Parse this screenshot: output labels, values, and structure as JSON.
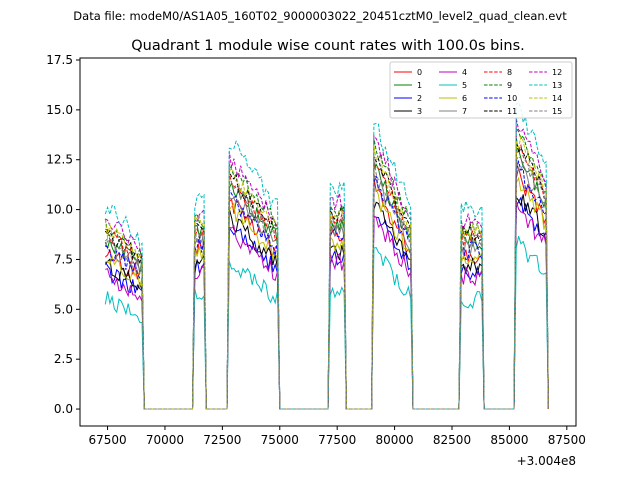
{
  "chart_data": {
    "type": "line",
    "suptitle": "Data file: modeM0/AS1A05_160T02_9000003022_20451cztM0_level2_quad_clean.evt",
    "title": "Quadrant 1 module wise count rates with 100.0s bins.",
    "xlabel": "",
    "ylabel": "",
    "x_offset_label": "+3.004e8",
    "xlim": [
      66300,
      87900
    ],
    "ylim": [
      -0.85,
      17.6
    ],
    "x_ticks": [
      67500,
      70000,
      72500,
      75000,
      77500,
      80000,
      82500,
      85000,
      87500
    ],
    "x_tick_labels": [
      "67500",
      "70000",
      "72500",
      "75000",
      "77500",
      "80000",
      "82500",
      "85000",
      "87500"
    ],
    "y_ticks": [
      0.0,
      2.5,
      5.0,
      7.5,
      10.0,
      12.5,
      15.0,
      17.5
    ],
    "y_tick_labels": [
      "0.0",
      "2.5",
      "5.0",
      "7.5",
      "10.0",
      "12.5",
      "15.0",
      "17.5"
    ],
    "legend_position": "top-right",
    "legend_columns": 4,
    "segments": [
      {
        "start": 67400,
        "end": 69000,
        "decay": 0.17
      },
      {
        "start": 71300,
        "end": 71700,
        "decay": 0.0
      },
      {
        "start": 72800,
        "end": 74900,
        "decay": 0.25
      },
      {
        "start": 77200,
        "end": 77800,
        "decay": 0.0
      },
      {
        "start": 79100,
        "end": 80700,
        "decay": 0.3
      },
      {
        "start": 82900,
        "end": 83800,
        "decay": 0.0
      },
      {
        "start": 85300,
        "end": 86600,
        "decay": 0.2
      }
    ],
    "segment_peak_factors": [
      1.0,
      1.02,
      1.32,
      1.08,
      1.42,
      0.98,
      1.5
    ],
    "series": [
      {
        "name": "0",
        "color": "#ff0000",
        "style": "solid",
        "level": 7.9
      },
      {
        "name": "1",
        "color": "#008000",
        "style": "solid",
        "level": 8.6
      },
      {
        "name": "2",
        "color": "#0000ff",
        "style": "solid",
        "level": 7.0
      },
      {
        "name": "3",
        "color": "#000000",
        "style": "solid",
        "level": 7.3
      },
      {
        "name": "4",
        "color": "#bf00bf",
        "style": "solid",
        "level": 6.8
      },
      {
        "name": "5",
        "color": "#00bfbf",
        "style": "solid",
        "level": 5.6
      },
      {
        "name": "6",
        "color": "#bfbf00",
        "style": "solid",
        "level": 7.7
      },
      {
        "name": "7",
        "color": "#808080",
        "style": "solid",
        "level": 8.3
      },
      {
        "name": "8",
        "color": "#ff0000",
        "style": "dashed",
        "level": 8.8
      },
      {
        "name": "9",
        "color": "#008000",
        "style": "dashed",
        "level": 9.3
      },
      {
        "name": "10",
        "color": "#0000ff",
        "style": "dashed",
        "level": 8.1
      },
      {
        "name": "11",
        "color": "#000000",
        "style": "dashed",
        "level": 9.0
      },
      {
        "name": "12",
        "color": "#bf00bf",
        "style": "dashed",
        "level": 9.6
      },
      {
        "name": "13",
        "color": "#00bfbf",
        "style": "dashed",
        "level": 10.2
      },
      {
        "name": "14",
        "color": "#bfbf00",
        "style": "dashed",
        "level": 9.1
      },
      {
        "name": "15",
        "color": "#808080",
        "style": "dashed",
        "level": 8.6
      }
    ]
  }
}
